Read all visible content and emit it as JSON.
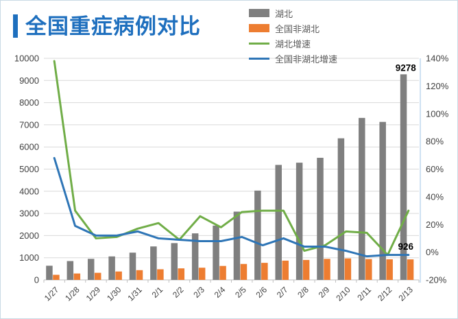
{
  "page": {
    "background": "#ffffff",
    "border_color": "#c9d9e4"
  },
  "header": {
    "title": "全国重症病例对比",
    "title_color": "#1e6fbe"
  },
  "legend": {
    "position": "top-right",
    "items": [
      {
        "label": "湖北",
        "color": "#7f7f7f",
        "shape": "bar"
      },
      {
        "label": "全国非湖北",
        "color": "#ed7d31",
        "shape": "bar"
      },
      {
        "label": "湖北增速",
        "color": "#70ad47",
        "shape": "line"
      },
      {
        "label": "全国非湖北增速",
        "color": "#2e75b6",
        "shape": "line"
      }
    ]
  },
  "chart_data": {
    "type": "bar",
    "subtype": "bar+line combo, dual axis",
    "grid": "horizontal gridlines on",
    "categories": [
      "1/27",
      "1/28",
      "1/29",
      "1/30",
      "1/31",
      "2/1",
      "2/2",
      "2/3",
      "2/4",
      "2/5",
      "2/6",
      "2/7",
      "2/8",
      "2/9",
      "2/10",
      "2/11",
      "2/12",
      "2/13"
    ],
    "series": [
      {
        "name": "湖北",
        "type": "bar",
        "axis": "left",
        "color": "#7f7f7f",
        "values": [
          640,
          850,
          950,
          1060,
          1230,
          1510,
          1660,
          2100,
          2450,
          3080,
          4030,
          5190,
          5290,
          5510,
          6390,
          7310,
          7130,
          9278
        ]
      },
      {
        "name": "全国非湖北",
        "type": "bar",
        "axis": "left",
        "color": "#ed7d31",
        "values": [
          230,
          290,
          320,
          380,
          440,
          480,
          520,
          550,
          630,
          720,
          770,
          870,
          900,
          950,
          970,
          940,
          930,
          926
        ]
      },
      {
        "name": "湖北增速",
        "type": "line",
        "axis": "right",
        "color": "#70ad47",
        "values_percent": [
          138,
          30,
          10,
          11,
          17,
          21,
          9,
          26,
          18,
          29,
          30,
          30,
          1,
          5,
          15,
          14,
          -2,
          30
        ]
      },
      {
        "name": "全国非湖北增速",
        "type": "line",
        "axis": "right",
        "color": "#2e75b6",
        "values_percent": [
          68,
          19,
          12,
          12,
          15,
          10,
          9,
          8,
          8,
          11,
          5,
          10,
          4,
          4,
          1,
          -3,
          -2,
          -2
        ]
      }
    ],
    "left_axis": {
      "min": 0,
      "max": 10000,
      "step": 1000,
      "tick_labels": [
        "0",
        "1000",
        "2000",
        "3000",
        "4000",
        "5000",
        "6000",
        "7000",
        "8000",
        "9000",
        "10000"
      ]
    },
    "right_axis": {
      "min_percent": -20,
      "max_percent": 140,
      "step_percent": 20,
      "tick_labels": [
        "-20%",
        "0%",
        "20%",
        "40%",
        "60%",
        "80%",
        "100%",
        "120%",
        "140%"
      ]
    },
    "data_labels": [
      {
        "series": "湖北",
        "category": "2/13",
        "text": "9278"
      },
      {
        "series": "全国非湖北",
        "category": "2/13",
        "text": "926"
      }
    ],
    "styles": {
      "gridline_color": "#d9d9d9",
      "x_axis_color": "#bfbfbf",
      "right_axis_line_color": "#9dc3e6",
      "tick_label_color": "#404040",
      "data_label_color": "#000000"
    }
  }
}
